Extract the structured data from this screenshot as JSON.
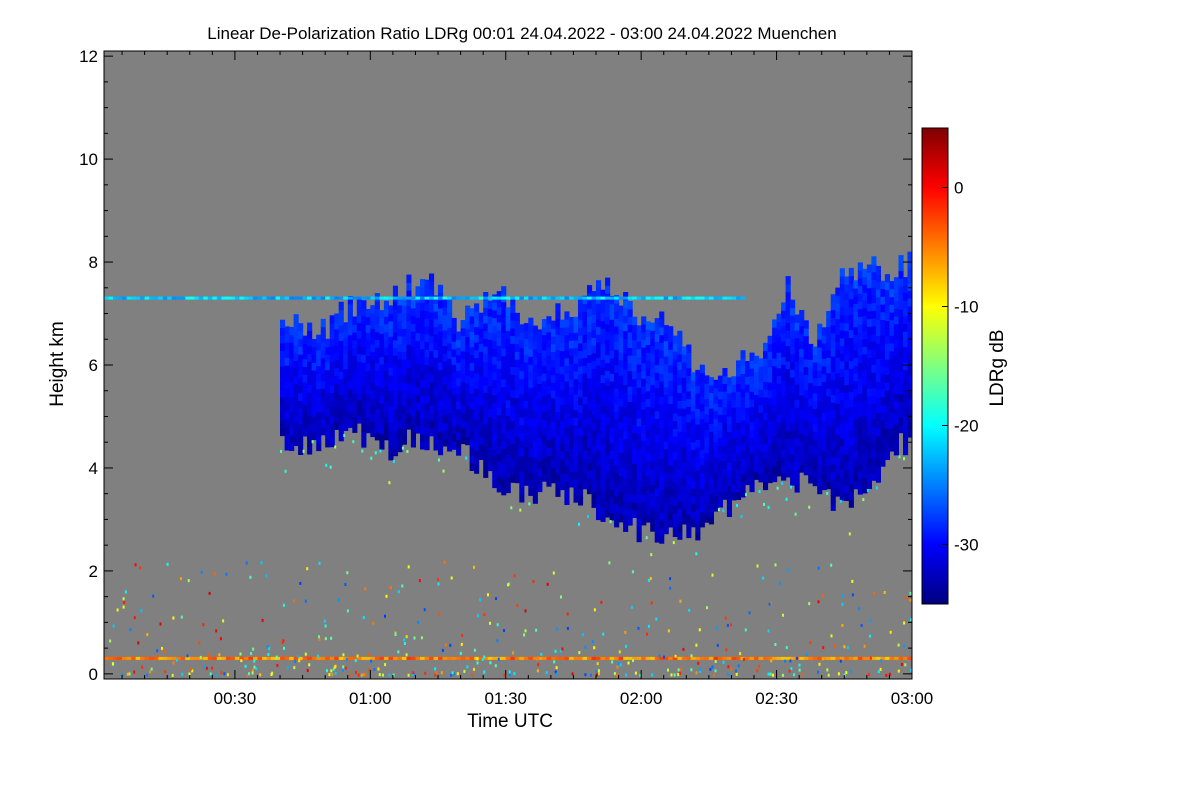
{
  "chart_data": {
    "type": "heatmap",
    "title": "Linear De-Polarization Ratio LDRg   00:01 24.04.2022 - 03:00 24.04.2022 Muenchen",
    "xlabel": "Time UTC",
    "ylabel": "Height km",
    "x_tick_labels": [
      "00:30",
      "01:00",
      "01:30",
      "02:00",
      "02:30",
      "03:00"
    ],
    "x_tick_values_min": [
      30,
      60,
      90,
      120,
      150,
      180
    ],
    "xlim_min": [
      1,
      180
    ],
    "y_tick_labels": [
      "0",
      "2",
      "4",
      "6",
      "8",
      "10",
      "12"
    ],
    "y_tick_values": [
      0,
      2,
      4,
      6,
      8,
      10,
      12
    ],
    "ylim": [
      -0.1,
      12.1
    ],
    "background_color": "#808080",
    "colorbar": {
      "label": "LDRg dB",
      "range": [
        -35,
        5
      ],
      "tick_labels": [
        "0",
        "-10",
        "-20",
        "-30"
      ],
      "tick_values": [
        0,
        -10,
        -20,
        -30
      ],
      "colormap": [
        "#00007f",
        "#0000ff",
        "#007fff",
        "#00ffff",
        "#7fff7f",
        "#ffff00",
        "#ff7f00",
        "#ff0000",
        "#7f0000"
      ]
    },
    "features": [
      {
        "kind": "ice-cloud",
        "ldr_db": -30,
        "time_min": [
          40,
          180
        ],
        "top_km": [
          [
            40,
            6.8
          ],
          [
            48,
            6.6
          ],
          [
            55,
            7.0
          ],
          [
            63,
            7.3
          ],
          [
            72,
            7.5
          ],
          [
            80,
            6.8
          ],
          [
            88,
            7.3
          ],
          [
            96,
            6.7
          ],
          [
            104,
            7.0
          ],
          [
            110,
            7.5
          ],
          [
            118,
            6.9
          ],
          [
            126,
            6.6
          ],
          [
            133,
            5.7
          ],
          [
            140,
            5.9
          ],
          [
            147,
            6.1
          ],
          [
            152,
            7.4
          ],
          [
            158,
            6.4
          ],
          [
            163,
            7.6
          ],
          [
            170,
            7.8
          ],
          [
            176,
            7.8
          ],
          [
            180,
            7.9
          ]
        ],
        "base_km": [
          [
            40,
            4.6
          ],
          [
            48,
            4.4
          ],
          [
            56,
            4.7
          ],
          [
            63,
            4.3
          ],
          [
            70,
            4.6
          ],
          [
            80,
            4.3
          ],
          [
            88,
            3.7
          ],
          [
            96,
            3.5
          ],
          [
            104,
            3.5
          ],
          [
            112,
            3.1
          ],
          [
            120,
            2.7
          ],
          [
            127,
            2.7
          ],
          [
            134,
            2.8
          ],
          [
            141,
            3.4
          ],
          [
            148,
            3.7
          ],
          [
            155,
            3.7
          ],
          [
            162,
            3.3
          ],
          [
            170,
            3.5
          ],
          [
            176,
            4.4
          ],
          [
            180,
            4.6
          ]
        ]
      },
      {
        "kind": "thin-layer",
        "ldr_db": -22,
        "height_km": 7.3,
        "time_min": [
          1,
          142
        ]
      },
      {
        "kind": "thin-layer",
        "ldr_db": -5,
        "height_km": 0.3,
        "time_min": [
          1,
          180
        ]
      }
    ]
  }
}
